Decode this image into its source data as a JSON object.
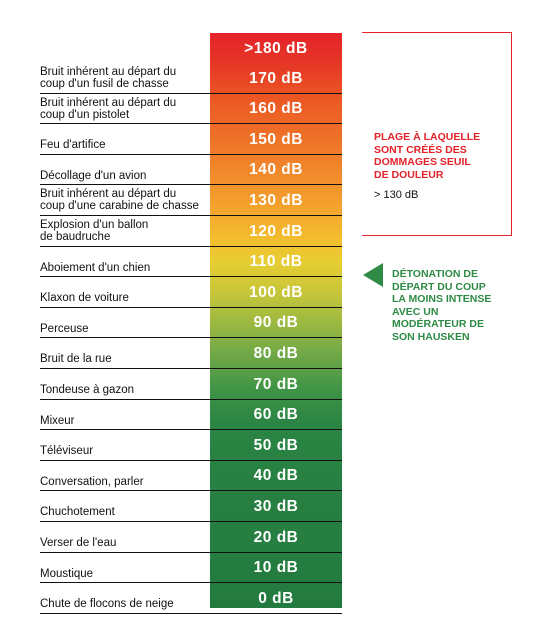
{
  "colors": {
    "red": "#e3222a",
    "green": "#2e8a45"
  },
  "top_value": ">180 dB",
  "rows": [
    {
      "label": "Bruit inhérent au départ du\ncoup d'un fusil de chasse",
      "value": "170 dB"
    },
    {
      "label": "Bruit inhérent au départ du\ncoup d'un pistolet",
      "value": "160 dB"
    },
    {
      "label": "Feu d'artifice",
      "value": "150 dB"
    },
    {
      "label": "Décollage d'un avion",
      "value": "140 dB"
    },
    {
      "label": "Bruit inhérent au départ du\ncoup d'une carabine de chasse",
      "value": "130 dB"
    },
    {
      "label": "Explosion d'un ballon\nde baudruche",
      "value": "120 dB"
    },
    {
      "label": "Aboiement d'un chien",
      "value": "110 dB"
    },
    {
      "label": "Klaxon de voiture",
      "value": "100 dB"
    },
    {
      "label": "Perceuse",
      "value": "90 dB"
    },
    {
      "label": "Bruit de la rue",
      "value": "80 dB"
    },
    {
      "label": "Tondeuse à gazon",
      "value": "70 dB"
    },
    {
      "label": "Mixeur",
      "value": "60 dB"
    },
    {
      "label": "Téléviseur",
      "value": "50 dB"
    },
    {
      "label": "Conversation, parler",
      "value": "40 dB"
    },
    {
      "label": "Chuchotement",
      "value": "30 dB"
    },
    {
      "label": "Verser de l'eau",
      "value": "20 dB"
    },
    {
      "label": "Moustique",
      "value": "10 dB"
    },
    {
      "label": "Chute de flocons de neige",
      "value": "0 dB"
    }
  ],
  "pain_note": {
    "title": "PLAGE À LAQUELLE\nSONT CRÉÉS DES\nDOMMAGES SEUIL\nDE DOULEUR",
    "threshold": "> 130 dB"
  },
  "moderator_note": {
    "text": "DÉTONATION DE\nDÉPART DU COUP\nLA MOINS INTENSE\nAVEC UN\nMODÉRATEUR DE\nSON HAUSKEN",
    "icon": "arrow-left-icon"
  }
}
